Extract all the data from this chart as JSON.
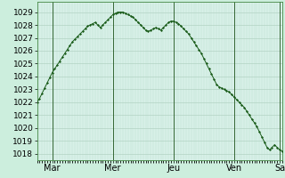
{
  "background_color": "#cceedd",
  "plot_bg_color": "#d8f0e8",
  "grid_color_major": "#aaccbb",
  "grid_color_minor": "#bbddcc",
  "line_color": "#1a5c1a",
  "ylim": [
    1017.5,
    1029.8
  ],
  "yticks": [
    1018,
    1019,
    1020,
    1021,
    1022,
    1023,
    1024,
    1025,
    1026,
    1027,
    1028,
    1029
  ],
  "day_labels": [
    "Mar",
    "Mer",
    "Jeu",
    "Ven",
    "Sa"
  ],
  "day_tick_positions": [
    6,
    30,
    54,
    78,
    96
  ],
  "day_vline_positions": [
    6,
    30,
    54,
    78,
    96
  ],
  "ylabel_fontsize": 6.5,
  "xlabel_fontsize": 7,
  "pressure_data": [
    1022.0,
    1022.3,
    1022.7,
    1023.1,
    1023.5,
    1023.9,
    1024.3,
    1024.6,
    1024.9,
    1025.2,
    1025.5,
    1025.8,
    1026.1,
    1026.4,
    1026.7,
    1026.9,
    1027.1,
    1027.3,
    1027.5,
    1027.7,
    1027.9,
    1028.0,
    1028.1,
    1028.2,
    1028.0,
    1027.8,
    1028.0,
    1028.2,
    1028.4,
    1028.6,
    1028.8,
    1028.9,
    1029.0,
    1029.0,
    1029.0,
    1028.9,
    1028.8,
    1028.7,
    1028.6,
    1028.4,
    1028.2,
    1028.0,
    1027.8,
    1027.6,
    1027.5,
    1027.6,
    1027.7,
    1027.8,
    1027.7,
    1027.6,
    1027.8,
    1028.0,
    1028.2,
    1028.3,
    1028.3,
    1028.2,
    1028.1,
    1027.9,
    1027.7,
    1027.5,
    1027.3,
    1027.0,
    1026.7,
    1026.4,
    1026.1,
    1025.8,
    1025.4,
    1025.0,
    1024.6,
    1024.2,
    1023.8,
    1023.4,
    1023.2,
    1023.1,
    1023.0,
    1022.9,
    1022.8,
    1022.6,
    1022.4,
    1022.2,
    1022.0,
    1021.8,
    1021.6,
    1021.3,
    1021.0,
    1020.7,
    1020.4,
    1020.1,
    1019.7,
    1019.3,
    1018.9,
    1018.5,
    1018.3,
    1018.5,
    1018.7,
    1018.5,
    1018.3,
    1018.2
  ]
}
